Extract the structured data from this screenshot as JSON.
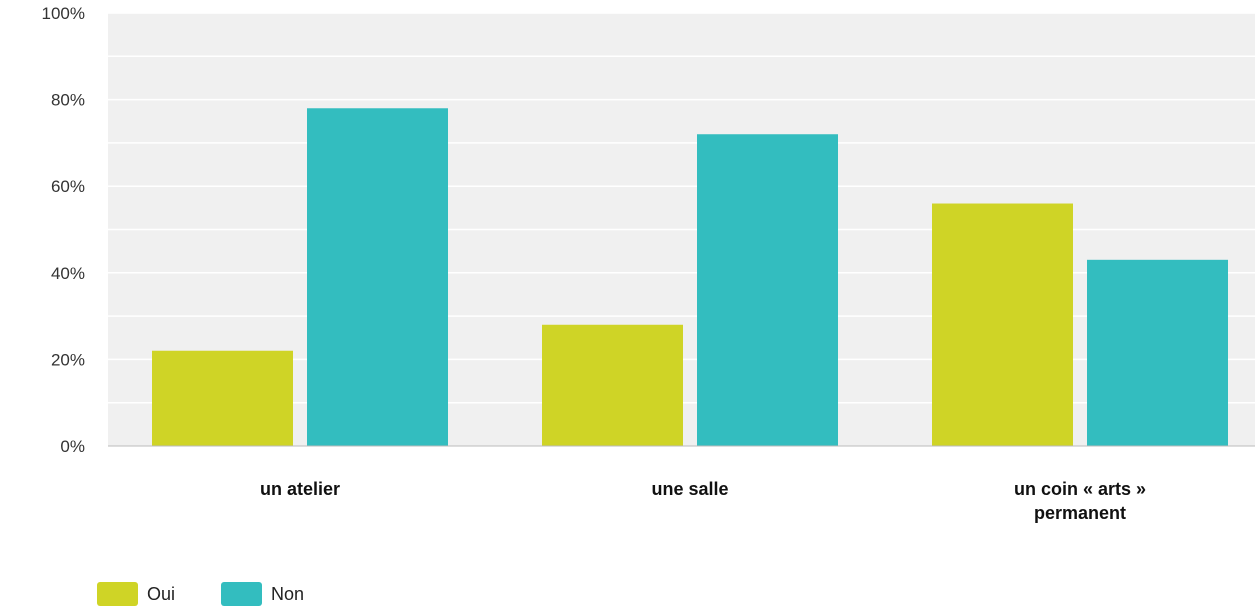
{
  "chart_data": {
    "type": "bar",
    "categories": [
      [
        "un atelier"
      ],
      [
        "une salle"
      ],
      [
        "un coin « arts »",
        "permanent"
      ]
    ],
    "series": [
      {
        "name": "Oui",
        "color": "#cfd426",
        "values": [
          22,
          28,
          56
        ]
      },
      {
        "name": "Non",
        "color": "#33bdbf",
        "values": [
          78,
          72,
          43
        ]
      }
    ],
    "yticks": [
      "0%",
      "20%",
      "40%",
      "60%",
      "80%",
      "100%"
    ],
    "ylim": [
      0,
      100
    ],
    "grid": true,
    "legend_position": "bottom-left"
  }
}
